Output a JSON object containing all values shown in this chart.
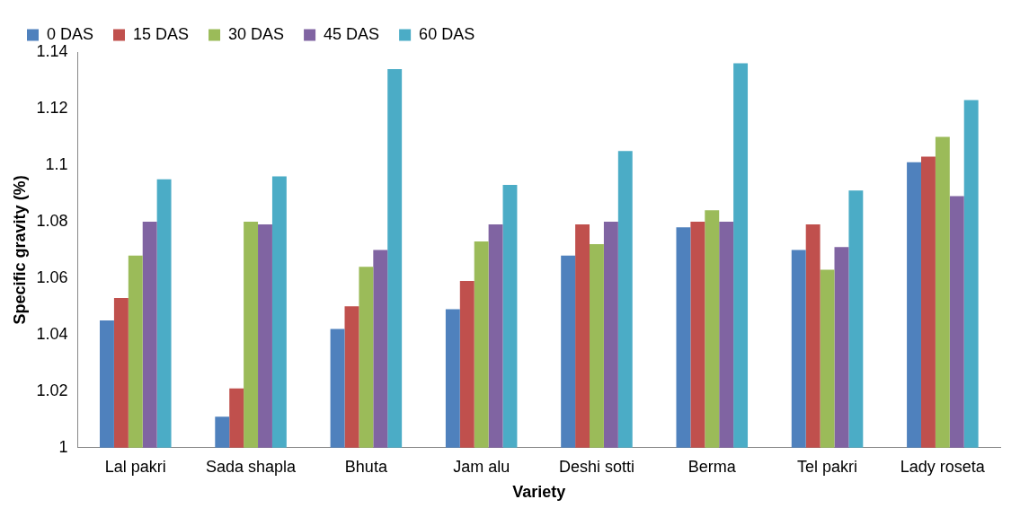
{
  "chart_data": {
    "type": "bar",
    "xlabel": "Variety",
    "ylabel": "Specific gravity (%)",
    "categories": [
      "Lal pakri",
      "Sada shapla",
      "Bhuta",
      "Jam alu",
      "Deshi sotti",
      "Berma",
      "Tel pakri",
      "Lady roseta"
    ],
    "series": [
      {
        "name": "0 DAS",
        "color": "#4f81bd",
        "values": [
          1.045,
          1.011,
          1.042,
          1.049,
          1.068,
          1.078,
          1.07,
          1.101
        ]
      },
      {
        "name": "15 DAS",
        "color": "#c0504d",
        "values": [
          1.053,
          1.021,
          1.05,
          1.059,
          1.079,
          1.08,
          1.079,
          1.103
        ]
      },
      {
        "name": "30 DAS",
        "color": "#9bbb59",
        "values": [
          1.068,
          1.08,
          1.064,
          1.073,
          1.072,
          1.084,
          1.063,
          1.11
        ]
      },
      {
        "name": "45 DAS",
        "color": "#8064a2",
        "values": [
          1.08,
          1.079,
          1.07,
          1.079,
          1.08,
          1.08,
          1.071,
          1.089
        ]
      },
      {
        "name": "60 DAS",
        "color": "#4bacc6",
        "values": [
          1.095,
          1.096,
          1.134,
          1.093,
          1.105,
          1.136,
          1.091,
          1.123
        ]
      }
    ],
    "ylim": [
      1,
      1.14
    ],
    "yticks": [
      1,
      1.02,
      1.04,
      1.06,
      1.08,
      1.1,
      1.12,
      1.14
    ],
    "grid": false,
    "legend": "top"
  }
}
